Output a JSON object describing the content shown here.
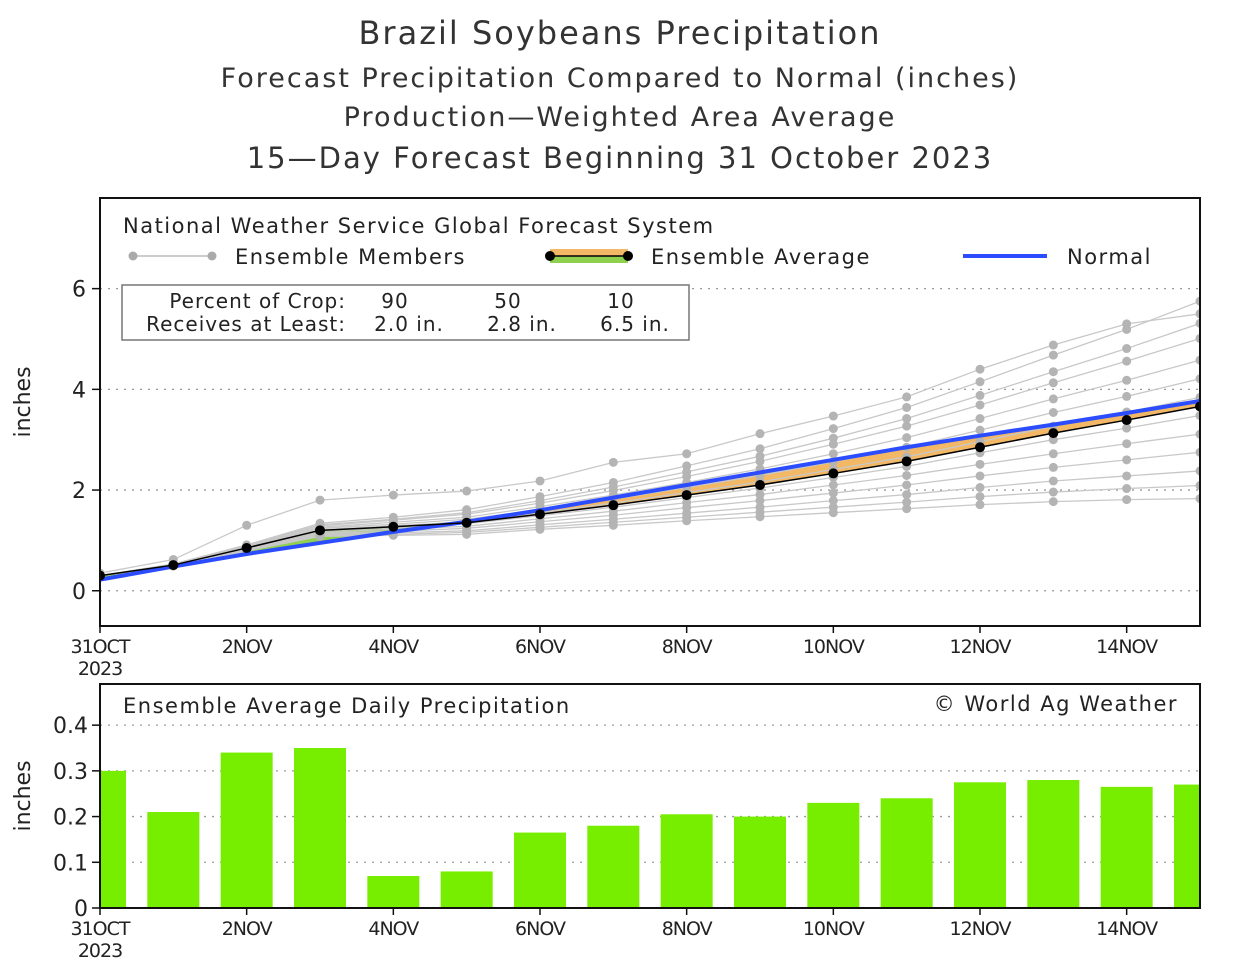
{
  "titles": {
    "main": "Brazil Soybeans Precipitation",
    "line2": "Forecast Precipitation Compared to Normal (inches)",
    "line3": "Production—Weighted Area Average",
    "line4": "15—Day Forecast Beginning 31 October 2023"
  },
  "chart_data": [
    {
      "type": "line",
      "source_label": "National Weather Service Global Forecast System",
      "legend": {
        "members": "Ensemble Members",
        "average": "Ensemble Average",
        "normal": "Normal"
      },
      "crop_box": {
        "row1_label": "Percent of Crop:",
        "row1_values": [
          "90",
          "50",
          "10"
        ],
        "row2_label": "Receives at Least:",
        "row2_values": [
          "2.0 in.",
          "2.8 in.",
          "6.5 in."
        ]
      },
      "ylabel": "inches",
      "ylim": [
        -0.7,
        7.8
      ],
      "yticks": [
        0,
        2,
        4,
        6
      ],
      "x_dates": [
        "31 Oct",
        "1 Nov",
        "2 Nov",
        "3 Nov",
        "4 Nov",
        "5 Nov",
        "6 Nov",
        "7 Nov",
        "8 Nov",
        "9 Nov",
        "10 Nov",
        "11 Nov",
        "12 Nov",
        "13 Nov",
        "14 Nov",
        "15 Nov"
      ],
      "xticks": [
        {
          "label": "31OCT",
          "sub": "2023"
        },
        {
          "label": "2NOV"
        },
        {
          "label": "4NOV"
        },
        {
          "label": "6NOV"
        },
        {
          "label": "8NOV"
        },
        {
          "label": "10NOV"
        },
        {
          "label": "12NOV"
        },
        {
          "label": "14NOV"
        }
      ],
      "xtick_index": [
        0,
        2,
        4,
        6,
        8,
        10,
        12,
        14
      ],
      "grid": "horizontal dotted",
      "ensemble_average": [
        0.3,
        0.51,
        0.85,
        1.2,
        1.27,
        1.35,
        1.52,
        1.7,
        1.9,
        2.1,
        2.33,
        2.57,
        2.85,
        3.13,
        3.39,
        3.66
      ],
      "normal": [
        0.22,
        0.48,
        0.73,
        0.95,
        1.17,
        1.37,
        1.6,
        1.85,
        2.1,
        2.35,
        2.6,
        2.85,
        3.08,
        3.3,
        3.53,
        3.77
      ],
      "members": [
        [
          0.35,
          0.62,
          1.3,
          1.8,
          1.9,
          1.98,
          2.18,
          2.55,
          2.72,
          3.12,
          3.47,
          3.85,
          4.4,
          4.88,
          5.3,
          5.5
        ],
        [
          0.3,
          0.53,
          0.91,
          1.34,
          1.46,
          1.61,
          1.87,
          2.15,
          2.48,
          2.82,
          3.22,
          3.64,
          4.15,
          4.68,
          5.19,
          5.75
        ],
        [
          0.3,
          0.53,
          0.9,
          1.31,
          1.42,
          1.55,
          1.79,
          2.06,
          2.36,
          2.67,
          3.03,
          3.42,
          3.88,
          4.35,
          4.81,
          5.31
        ],
        [
          0.3,
          0.52,
          0.89,
          1.29,
          1.4,
          1.52,
          1.74,
          1.99,
          2.27,
          2.57,
          2.91,
          3.27,
          3.69,
          4.13,
          4.56,
          5.01
        ],
        [
          0.3,
          0.52,
          0.88,
          1.26,
          1.36,
          1.46,
          1.67,
          1.9,
          2.15,
          2.42,
          2.72,
          3.04,
          3.42,
          3.81,
          4.18,
          4.58
        ],
        [
          0.3,
          0.52,
          0.87,
          1.24,
          1.32,
          1.42,
          1.61,
          1.82,
          2.05,
          2.29,
          2.56,
          2.85,
          3.19,
          3.54,
          3.86,
          4.21
        ],
        [
          0.3,
          0.51,
          0.86,
          1.21,
          1.29,
          1.37,
          1.55,
          1.74,
          1.95,
          2.16,
          2.41,
          2.66,
          2.96,
          3.27,
          3.55,
          3.84
        ],
        [
          0.3,
          0.51,
          0.84,
          1.19,
          1.25,
          1.33,
          1.49,
          1.66,
          1.85,
          2.04,
          2.25,
          2.47,
          2.74,
          3.0,
          3.23,
          3.48
        ],
        [
          0.3,
          0.5,
          0.83,
          1.16,
          1.22,
          1.28,
          1.43,
          1.58,
          1.75,
          1.91,
          2.1,
          2.29,
          2.51,
          2.72,
          2.92,
          3.11
        ],
        [
          0.3,
          0.5,
          0.82,
          1.14,
          1.18,
          1.24,
          1.37,
          1.5,
          1.65,
          1.79,
          1.94,
          2.1,
          2.28,
          2.45,
          2.6,
          2.75
        ],
        [
          0.3,
          0.5,
          0.81,
          1.12,
          1.15,
          1.19,
          1.31,
          1.42,
          1.54,
          1.66,
          1.79,
          1.91,
          2.05,
          2.18,
          2.28,
          2.38
        ],
        [
          0.3,
          0.5,
          0.8,
          1.1,
          1.12,
          1.16,
          1.26,
          1.36,
          1.46,
          1.56,
          1.66,
          1.76,
          1.87,
          1.96,
          2.03,
          2.09
        ],
        [
          0.3,
          0.49,
          0.79,
          1.08,
          1.1,
          1.12,
          1.22,
          1.3,
          1.39,
          1.47,
          1.55,
          1.63,
          1.71,
          1.77,
          1.81,
          1.83
        ]
      ],
      "colors": {
        "members": "#b4b4b4",
        "average": "#000000",
        "normal": "#2b4cff",
        "above_normal_fill": "#8fd14f",
        "below_normal_fill": "#f2b866"
      }
    },
    {
      "type": "bar",
      "title": "Ensemble Average Daily Precipitation",
      "credit": "© World Ag Weather",
      "ylabel": "inches",
      "ylim": [
        0,
        0.49
      ],
      "yticks": [
        "0",
        "0.1",
        "0.2",
        "0.3",
        "0.4"
      ],
      "ytick_values": [
        0,
        0.1,
        0.2,
        0.3,
        0.4
      ],
      "categories": [
        "31 Oct",
        "1 Nov",
        "2 Nov",
        "3 Nov",
        "4 Nov",
        "5 Nov",
        "6 Nov",
        "7 Nov",
        "8 Nov",
        "9 Nov",
        "10 Nov",
        "11 Nov",
        "12 Nov",
        "13 Nov",
        "14 Nov",
        "15 Nov"
      ],
      "values": [
        0.3,
        0.21,
        0.34,
        0.35,
        0.07,
        0.08,
        0.165,
        0.18,
        0.205,
        0.2,
        0.23,
        0.24,
        0.275,
        0.28,
        0.265,
        0.27
      ],
      "grid": "horizontal dotted",
      "colors": {
        "bar": "#77ee00"
      }
    }
  ]
}
